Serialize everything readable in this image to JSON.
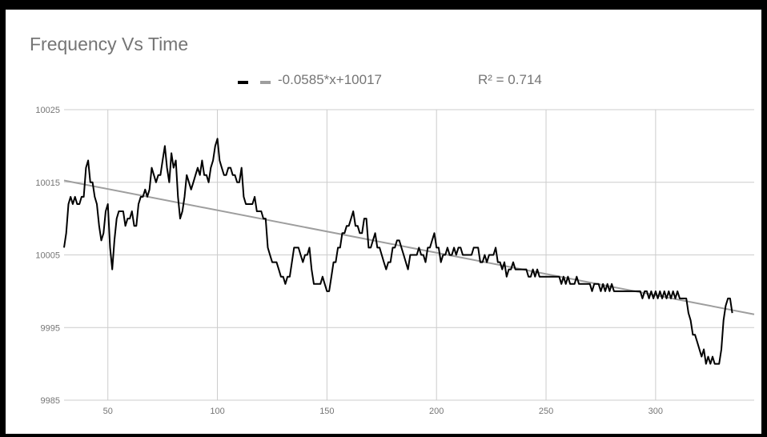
{
  "chart_data": {
    "type": "line",
    "title": "Frequency Vs Time",
    "xlabel": "",
    "ylabel": "",
    "xlim": [
      30,
      345
    ],
    "ylim": [
      9985,
      10025
    ],
    "x_ticks": [
      50,
      100,
      150,
      200,
      250,
      300
    ],
    "y_ticks": [
      9985,
      9995,
      10005,
      10015,
      10025
    ],
    "grid": true,
    "legend_position": "top-center",
    "legend": {
      "trendline_label": "-0.0585*x+10017",
      "r2_label": "R² = 0.714"
    },
    "colors": {
      "series": "#000000",
      "trendline": "#9e9e9e",
      "grid": "#cccccc",
      "text": "#757575"
    },
    "series": [
      {
        "values": [
          [
            30,
            10006
          ],
          [
            31,
            10008
          ],
          [
            32,
            10012
          ],
          [
            33,
            10013
          ],
          [
            34,
            10012
          ],
          [
            35,
            10013
          ],
          [
            36,
            10012
          ],
          [
            37,
            10012
          ],
          [
            38,
            10013
          ],
          [
            39,
            10013
          ],
          [
            40,
            10017
          ],
          [
            41,
            10018
          ],
          [
            42,
            10015
          ],
          [
            43,
            10015
          ],
          [
            44,
            10013
          ],
          [
            45,
            10012
          ],
          [
            46,
            10009
          ],
          [
            47,
            10007
          ],
          [
            48,
            10008
          ],
          [
            49,
            10011
          ],
          [
            50,
            10012
          ],
          [
            51,
            10006
          ],
          [
            52,
            10003
          ],
          [
            53,
            10007
          ],
          [
            54,
            10010
          ],
          [
            55,
            10011
          ],
          [
            56,
            10011
          ],
          [
            57,
            10011
          ],
          [
            58,
            10009
          ],
          [
            59,
            10010
          ],
          [
            60,
            10010
          ],
          [
            61,
            10011
          ],
          [
            62,
            10009
          ],
          [
            63,
            10009
          ],
          [
            64,
            10012
          ],
          [
            65,
            10013
          ],
          [
            66,
            10013
          ],
          [
            67,
            10014
          ],
          [
            68,
            10013
          ],
          [
            69,
            10014
          ],
          [
            70,
            10017
          ],
          [
            71,
            10016
          ],
          [
            72,
            10015
          ],
          [
            73,
            10016
          ],
          [
            74,
            10016
          ],
          [
            75,
            10018
          ],
          [
            76,
            10020
          ],
          [
            77,
            10017
          ],
          [
            78,
            10015
          ],
          [
            79,
            10019
          ],
          [
            80,
            10017
          ],
          [
            81,
            10018
          ],
          [
            82,
            10013
          ],
          [
            83,
            10010
          ],
          [
            84,
            10011
          ],
          [
            85,
            10013
          ],
          [
            86,
            10016
          ],
          [
            87,
            10015
          ],
          [
            88,
            10014
          ],
          [
            89,
            10015
          ],
          [
            90,
            10016
          ],
          [
            91,
            10017
          ],
          [
            92,
            10016
          ],
          [
            93,
            10018
          ],
          [
            94,
            10016
          ],
          [
            95,
            10016
          ],
          [
            96,
            10015
          ],
          [
            97,
            10017
          ],
          [
            98,
            10018
          ],
          [
            99,
            10020
          ],
          [
            100,
            10021
          ],
          [
            101,
            10018
          ],
          [
            102,
            10017
          ],
          [
            103,
            10016
          ],
          [
            104,
            10016
          ],
          [
            105,
            10017
          ],
          [
            106,
            10017
          ],
          [
            107,
            10016
          ],
          [
            108,
            10016
          ],
          [
            109,
            10015
          ],
          [
            110,
            10015
          ],
          [
            111,
            10017
          ],
          [
            112,
            10013
          ],
          [
            113,
            10012
          ],
          [
            114,
            10012
          ],
          [
            115,
            10012
          ],
          [
            116,
            10012
          ],
          [
            117,
            10013
          ],
          [
            118,
            10011
          ],
          [
            119,
            10011
          ],
          [
            120,
            10011
          ],
          [
            121,
            10010
          ],
          [
            122,
            10010
          ],
          [
            123,
            10006
          ],
          [
            124,
            10005
          ],
          [
            125,
            10004
          ],
          [
            126,
            10004
          ],
          [
            127,
            10004
          ],
          [
            128,
            10003
          ],
          [
            129,
            10002
          ],
          [
            130,
            10002
          ],
          [
            131,
            10001
          ],
          [
            132,
            10002
          ],
          [
            133,
            10002
          ],
          [
            134,
            10004
          ],
          [
            135,
            10006
          ],
          [
            136,
            10006
          ],
          [
            137,
            10006
          ],
          [
            138,
            10005
          ],
          [
            139,
            10004
          ],
          [
            140,
            10005
          ],
          [
            141,
            10005
          ],
          [
            142,
            10006
          ],
          [
            143,
            10003
          ],
          [
            144,
            10001
          ],
          [
            145,
            10001
          ],
          [
            146,
            10001
          ],
          [
            147,
            10001
          ],
          [
            148,
            10002
          ],
          [
            149,
            10001
          ],
          [
            150,
            10000
          ],
          [
            151,
            10000
          ],
          [
            152,
            10002
          ],
          [
            153,
            10004
          ],
          [
            154,
            10004
          ],
          [
            155,
            10006
          ],
          [
            156,
            10006
          ],
          [
            157,
            10008
          ],
          [
            158,
            10008
          ],
          [
            159,
            10009
          ],
          [
            160,
            10009
          ],
          [
            161,
            10010
          ],
          [
            162,
            10011
          ],
          [
            163,
            10009
          ],
          [
            164,
            10009
          ],
          [
            165,
            10008
          ],
          [
            166,
            10008
          ],
          [
            167,
            10010
          ],
          [
            168,
            10010
          ],
          [
            169,
            10006
          ],
          [
            170,
            10006
          ],
          [
            171,
            10007
          ],
          [
            172,
            10008
          ],
          [
            173,
            10006
          ],
          [
            174,
            10006
          ],
          [
            175,
            10005
          ],
          [
            176,
            10004
          ],
          [
            177,
            10003
          ],
          [
            178,
            10004
          ],
          [
            179,
            10004
          ],
          [
            180,
            10006
          ],
          [
            181,
            10006
          ],
          [
            182,
            10007
          ],
          [
            183,
            10007
          ],
          [
            184,
            10006
          ],
          [
            185,
            10005
          ],
          [
            186,
            10004
          ],
          [
            187,
            10003
          ],
          [
            188,
            10005
          ],
          [
            189,
            10005
          ],
          [
            190,
            10005
          ],
          [
            191,
            10005
          ],
          [
            192,
            10006
          ],
          [
            193,
            10005
          ],
          [
            194,
            10005
          ],
          [
            195,
            10004
          ],
          [
            196,
            10006
          ],
          [
            197,
            10006
          ],
          [
            198,
            10007
          ],
          [
            199,
            10008
          ],
          [
            200,
            10006
          ],
          [
            201,
            10006
          ],
          [
            202,
            10004
          ],
          [
            203,
            10005
          ],
          [
            204,
            10005
          ],
          [
            205,
            10006
          ],
          [
            206,
            10005
          ],
          [
            207,
            10005
          ],
          [
            208,
            10006
          ],
          [
            209,
            10005
          ],
          [
            210,
            10006
          ],
          [
            211,
            10006
          ],
          [
            212,
            10005
          ],
          [
            213,
            10005
          ],
          [
            214,
            10005
          ],
          [
            215,
            10005
          ],
          [
            216,
            10005
          ],
          [
            217,
            10006
          ],
          [
            218,
            10006
          ],
          [
            219,
            10006
          ],
          [
            220,
            10004
          ],
          [
            221,
            10004
          ],
          [
            222,
            10005
          ],
          [
            223,
            10004
          ],
          [
            224,
            10005
          ],
          [
            225,
            10005
          ],
          [
            226,
            10005
          ],
          [
            227,
            10006
          ],
          [
            228,
            10004
          ],
          [
            229,
            10004
          ],
          [
            230,
            10003
          ],
          [
            231,
            10004
          ],
          [
            232,
            10002
          ],
          [
            233,
            10003
          ],
          [
            234,
            10003
          ],
          [
            235,
            10004
          ],
          [
            236,
            10003
          ],
          [
            237,
            10003
          ],
          [
            238,
            10003
          ],
          [
            239,
            10003
          ],
          [
            240,
            10003
          ],
          [
            241,
            10003
          ],
          [
            242,
            10002
          ],
          [
            243,
            10002
          ],
          [
            244,
            10003
          ],
          [
            245,
            10002
          ],
          [
            246,
            10003
          ],
          [
            247,
            10002
          ],
          [
            248,
            10002
          ],
          [
            249,
            10002
          ],
          [
            250,
            10002
          ],
          [
            251,
            10002
          ],
          [
            252,
            10002
          ],
          [
            253,
            10002
          ],
          [
            254,
            10002
          ],
          [
            255,
            10002
          ],
          [
            256,
            10002
          ],
          [
            257,
            10001
          ],
          [
            258,
            10002
          ],
          [
            259,
            10001
          ],
          [
            260,
            10002
          ],
          [
            261,
            10001
          ],
          [
            262,
            10001
          ],
          [
            263,
            10001
          ],
          [
            264,
            10002
          ],
          [
            265,
            10001
          ],
          [
            266,
            10001
          ],
          [
            267,
            10001
          ],
          [
            268,
            10001
          ],
          [
            269,
            10001
          ],
          [
            270,
            10001
          ],
          [
            271,
            10000
          ],
          [
            272,
            10001
          ],
          [
            273,
            10001
          ],
          [
            274,
            10001
          ],
          [
            275,
            10000
          ],
          [
            276,
            10001
          ],
          [
            277,
            10000
          ],
          [
            278,
            10001
          ],
          [
            279,
            10000
          ],
          [
            280,
            10001
          ],
          [
            281,
            10000
          ],
          [
            282,
            10000
          ],
          [
            283,
            10000
          ],
          [
            284,
            10000
          ],
          [
            285,
            10000
          ],
          [
            286,
            10000
          ],
          [
            287,
            10000
          ],
          [
            288,
            10000
          ],
          [
            289,
            10000
          ],
          [
            290,
            10000
          ],
          [
            291,
            10000
          ],
          [
            292,
            10000
          ],
          [
            293,
            10000
          ],
          [
            294,
            9999
          ],
          [
            295,
            10000
          ],
          [
            296,
            10000
          ],
          [
            297,
            9999
          ],
          [
            298,
            10000
          ],
          [
            299,
            9999
          ],
          [
            300,
            10000
          ],
          [
            301,
            9999
          ],
          [
            302,
            10000
          ],
          [
            303,
            9999
          ],
          [
            304,
            10000
          ],
          [
            305,
            9999
          ],
          [
            306,
            10000
          ],
          [
            307,
            9999
          ],
          [
            308,
            10000
          ],
          [
            309,
            9999
          ],
          [
            310,
            10000
          ],
          [
            311,
            9999
          ],
          [
            312,
            9999
          ],
          [
            313,
            9999
          ],
          [
            314,
            9999
          ],
          [
            315,
            9997
          ],
          [
            316,
            9996
          ],
          [
            317,
            9994
          ],
          [
            318,
            9994
          ],
          [
            319,
            9993
          ],
          [
            320,
            9992
          ],
          [
            321,
            9991
          ],
          [
            322,
            9992
          ],
          [
            323,
            9990
          ],
          [
            324,
            9991
          ],
          [
            325,
            9990
          ],
          [
            326,
            9991
          ],
          [
            327,
            9990
          ],
          [
            328,
            9990
          ],
          [
            329,
            9990
          ],
          [
            330,
            9992
          ],
          [
            331,
            9996
          ],
          [
            332,
            9998
          ],
          [
            333,
            9999
          ],
          [
            334,
            9999
          ],
          [
            335,
            9997
          ]
        ]
      }
    ],
    "trendline": {
      "slope": -0.0585,
      "intercept": 10017
    }
  }
}
